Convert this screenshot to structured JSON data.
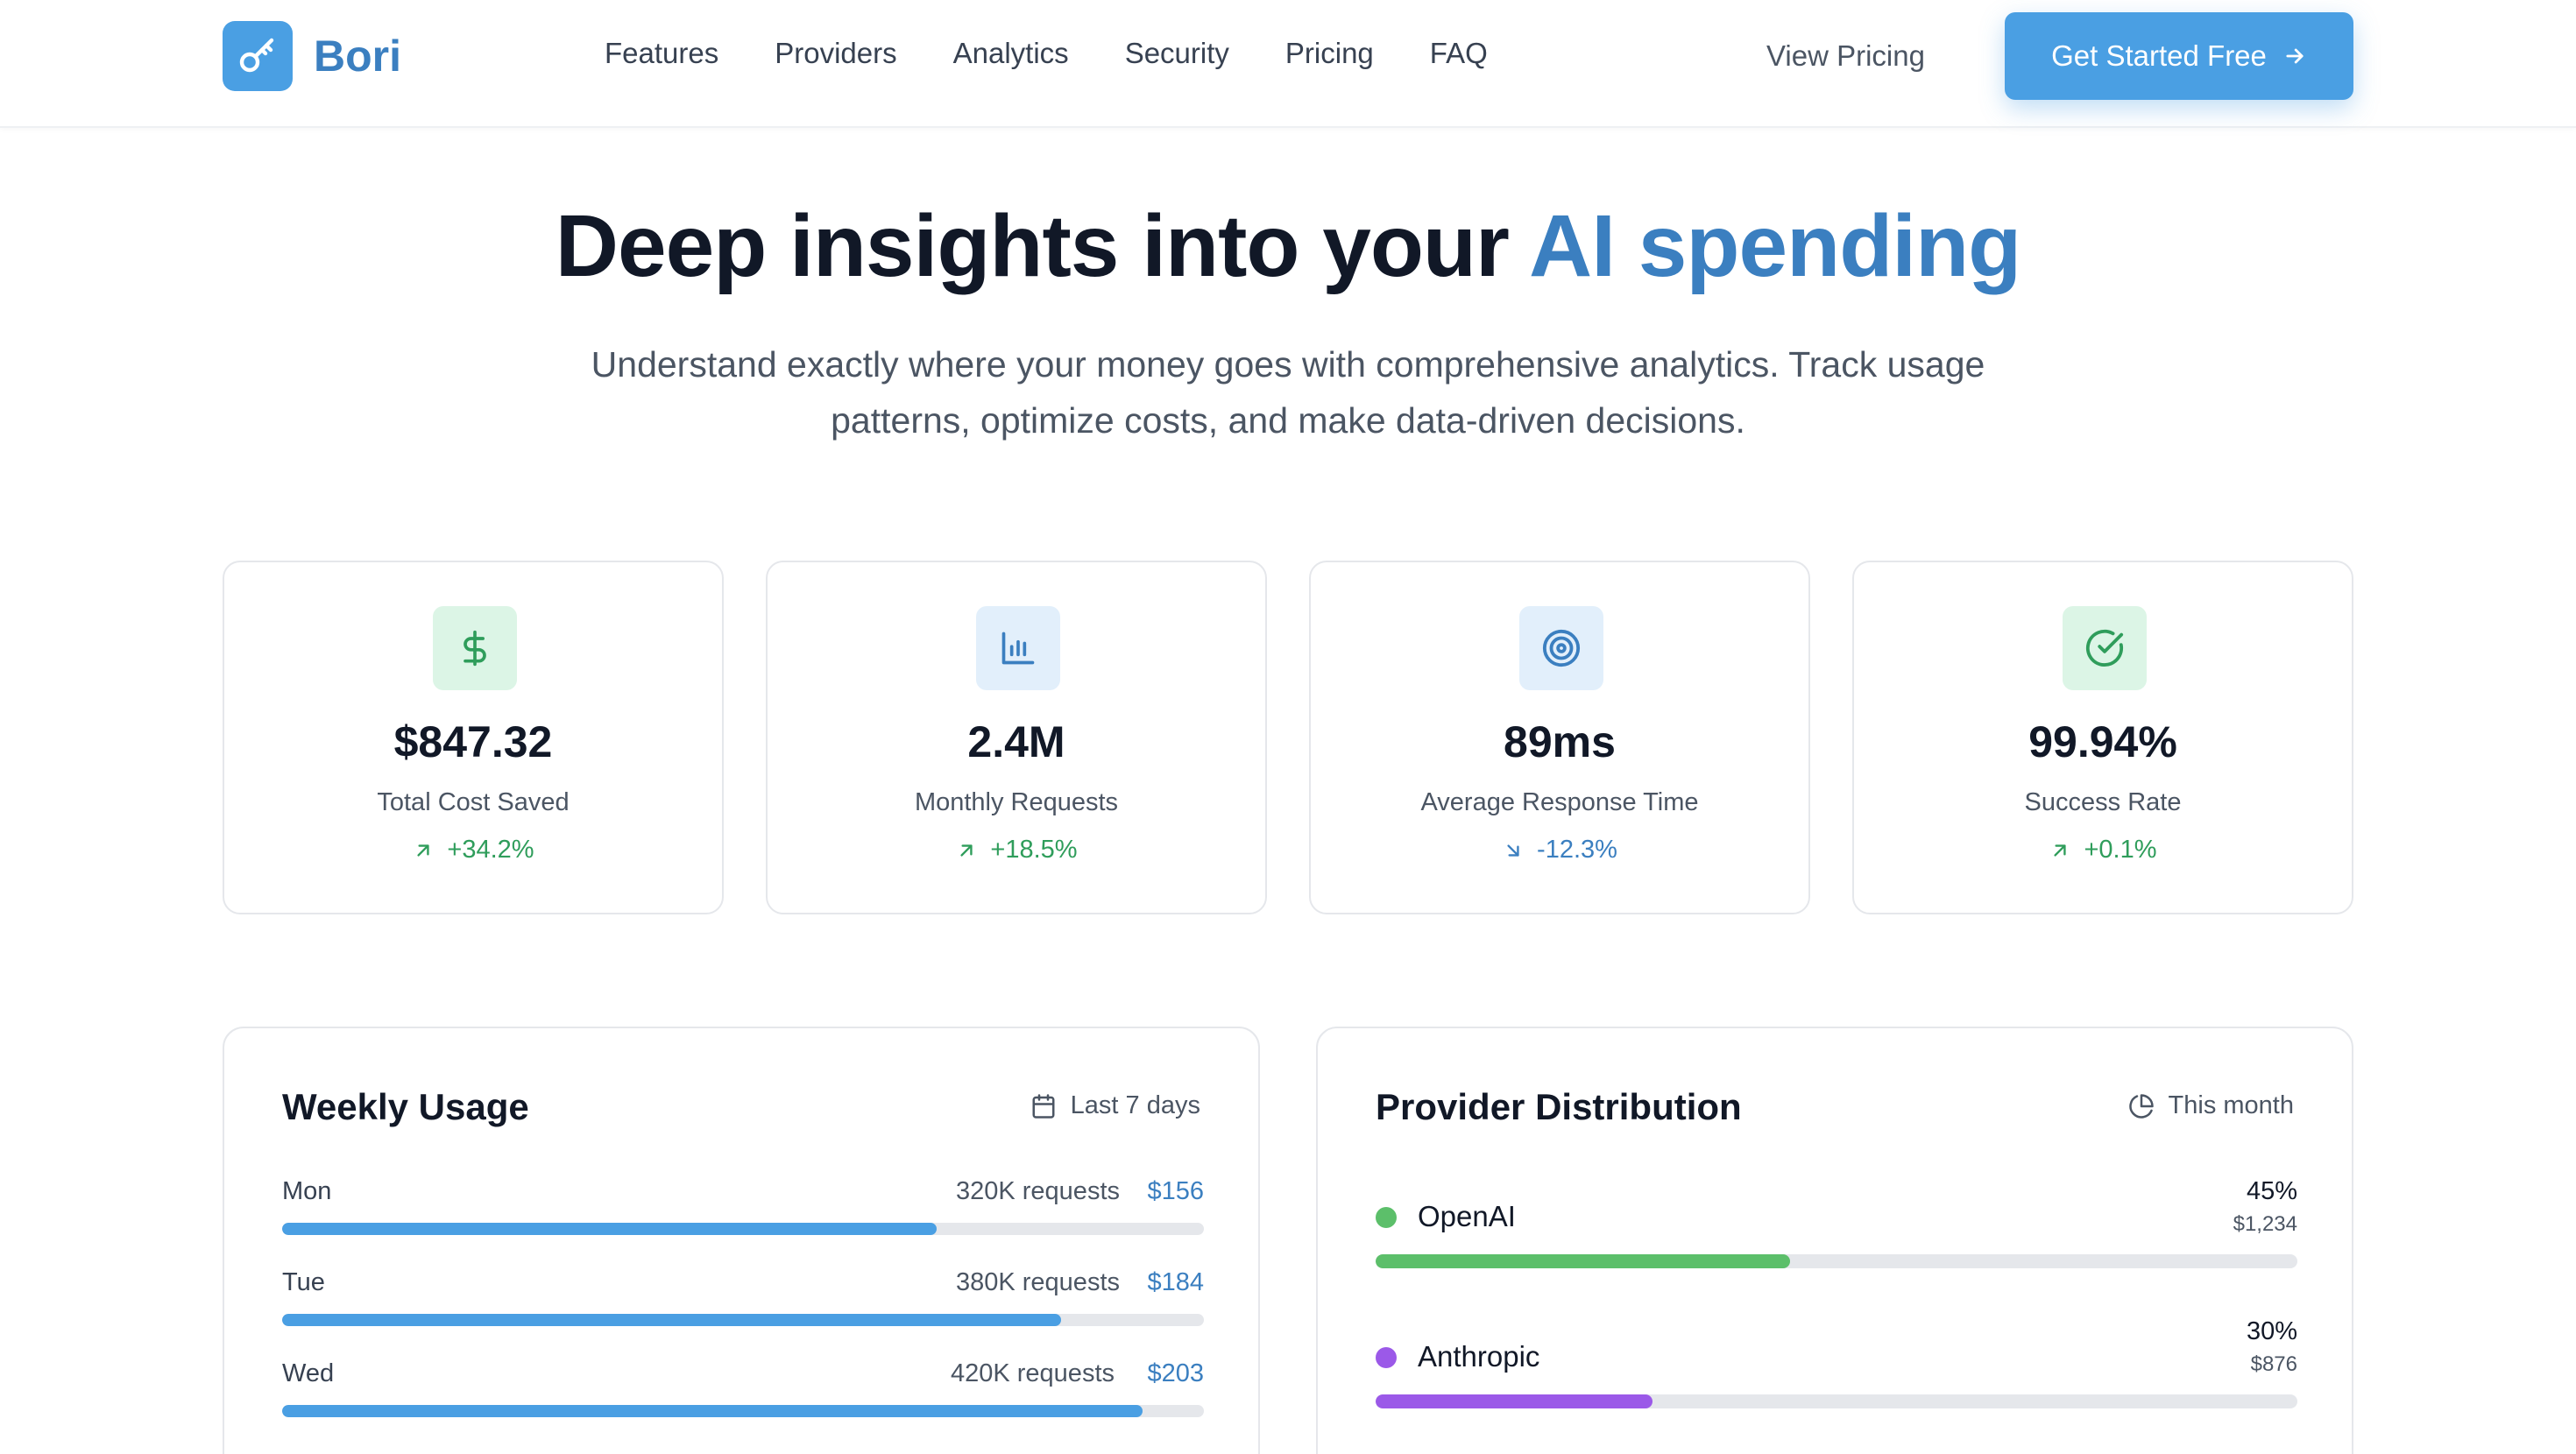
{
  "brand": {
    "name": "Bori",
    "icon": "key-icon"
  },
  "nav": {
    "links": [
      "Features",
      "Providers",
      "Analytics",
      "Security",
      "Pricing",
      "FAQ"
    ],
    "view_pricing": "View Pricing",
    "cta": "Get Started Free"
  },
  "hero": {
    "title_main": "Deep insights into your",
    "title_accent": "AI spending",
    "subtitle": "Understand exactly where your money goes with comprehensive analytics. Track usage patterns, optimize costs, and make data-driven decisions."
  },
  "stats": [
    {
      "icon": "dollar-icon",
      "value": "$847.32",
      "label": "Total Cost Saved",
      "change": "+34.2%",
      "direction": "up",
      "icon_bg": "#dcf5e6",
      "icon_color": "#2f9d5b",
      "change_color": "#2f9d5b"
    },
    {
      "icon": "bar-chart-icon",
      "value": "2.4M",
      "label": "Monthly Requests",
      "change": "+18.5%",
      "direction": "up",
      "icon_bg": "#e2effb",
      "icon_color": "#3b7fc0",
      "change_color": "#2f9d5b"
    },
    {
      "icon": "target-icon",
      "value": "89ms",
      "label": "Average Response Time",
      "change": "-12.3%",
      "direction": "down",
      "icon_bg": "#e2effb",
      "icon_color": "#3b7fc0",
      "change_color": "#3b7fc0"
    },
    {
      "icon": "check-circle-icon",
      "value": "99.94%",
      "label": "Success Rate",
      "change": "+0.1%",
      "direction": "up",
      "icon_bg": "#dcf5e6",
      "icon_color": "#2f9d5b",
      "change_color": "#2f9d5b"
    }
  ],
  "weekly_usage": {
    "title": "Weekly Usage",
    "meta": "Last 7 days",
    "meta_icon": "calendar-icon",
    "rows": [
      {
        "day": "Mon",
        "requests": "320K requests",
        "cost": "$156",
        "progress": 0.71
      },
      {
        "day": "Tue",
        "requests": "380K requests",
        "cost": "$184",
        "progress": 0.845
      },
      {
        "day": "Wed",
        "requests": "420K requests",
        "cost": "$203",
        "progress": 0.933
      }
    ]
  },
  "provider_distribution": {
    "title": "Provider Distribution",
    "meta": "This month",
    "meta_icon": "pie-chart-icon",
    "rows": [
      {
        "name": "OpenAI",
        "percent": "45%",
        "cost": "$1,234",
        "share": 0.45,
        "color": "#5cbf6a"
      },
      {
        "name": "Anthropic",
        "percent": "30%",
        "cost": "$876",
        "share": 0.3,
        "color": "#9b59e8"
      }
    ]
  },
  "colors": {
    "accent": "#4a9fe3",
    "accent_dark": "#3b7fc0",
    "green": "#2f9d5b"
  }
}
